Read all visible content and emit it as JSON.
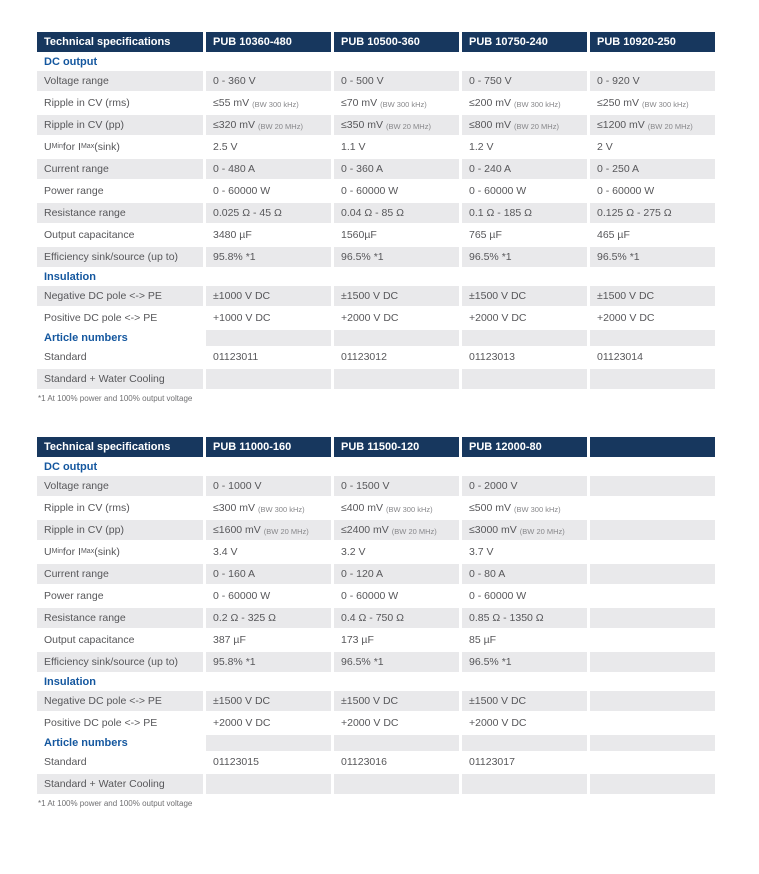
{
  "colors": {
    "header_bg": "#17375e",
    "section_text": "#14579f",
    "row_shade": "#e9e9eb",
    "body_text": "#57575a"
  },
  "tables": [
    {
      "header": [
        "Technical specifications",
        "PUB 10360-480",
        "PUB 10500-360",
        "PUB 10750-240",
        "PUB 10920-250"
      ],
      "rows": [
        {
          "type": "section",
          "label": "DC output"
        },
        {
          "type": "data",
          "label": "Voltage range",
          "values": [
            "0 - 360 V",
            "0 - 500 V",
            "0 - 750 V",
            "0 - 920 V"
          ]
        },
        {
          "type": "data",
          "label": "Ripple in CV (rms)",
          "values": [
            {
              "v": "≤55 mV",
              "n": "(BW 300 kHz)"
            },
            {
              "v": "≤70 mV",
              "n": "(BW 300 kHz)"
            },
            {
              "v": "≤200 mV",
              "n": "(BW 300 kHz)"
            },
            {
              "v": "≤250 mV",
              "n": "(BW 300 kHz)"
            }
          ]
        },
        {
          "type": "data",
          "label": "Ripple in CV (pp)",
          "values": [
            {
              "v": "≤320 mV",
              "n": "(BW 20 MHz)"
            },
            {
              "v": "≤350 mV",
              "n": "(BW 20 MHz)"
            },
            {
              "v": "≤800 mV",
              "n": "(BW 20 MHz)"
            },
            {
              "v": "≤1200 mV",
              "n": "(BW 20 MHz)"
            }
          ]
        },
        {
          "type": "data",
          "label": "U[Min] for I[Max] (sink)",
          "values": [
            "2.5 V",
            "1.1 V",
            "1.2 V",
            "2 V"
          ]
        },
        {
          "type": "data",
          "label": "Current range",
          "values": [
            "0 - 480 A",
            "0 - 360 A",
            "0 - 240 A",
            "0 - 250 A"
          ]
        },
        {
          "type": "data",
          "label": "Power range",
          "values": [
            "0 - 60000 W",
            "0 - 60000 W",
            "0 - 60000 W",
            "0 - 60000 W"
          ]
        },
        {
          "type": "data",
          "label": "Resistance range",
          "values": [
            "0.025 Ω - 45 Ω",
            "0.04 Ω - 85 Ω",
            "0.1 Ω - 185 Ω",
            "0.125 Ω - 275 Ω"
          ]
        },
        {
          "type": "data",
          "label": "Output capacitance",
          "values": [
            "3480 µF",
            "1560µF",
            "765 µF",
            "465 µF"
          ]
        },
        {
          "type": "data",
          "label": "Efficiency sink/source (up to)",
          "values": [
            "95.8% *1",
            "96.5% *1",
            "96.5% *1",
            "96.5% *1"
          ]
        },
        {
          "type": "section",
          "label": "Insulation"
        },
        {
          "type": "data",
          "label": "Negative DC pole <-> PE",
          "values": [
            "±1000 V DC",
            "±1500 V DC",
            "±1500 V DC",
            "±1500 V DC"
          ]
        },
        {
          "type": "data",
          "label": "Positive DC pole <-> PE",
          "values": [
            "+1000 V DC",
            "+2000 V DC",
            "+2000 V DC",
            "+2000 V DC"
          ]
        },
        {
          "type": "section",
          "label": "Article numbers"
        },
        {
          "type": "data",
          "label": "Standard",
          "values": [
            "01123011",
            "01123012",
            "01123013",
            "01123014"
          ]
        },
        {
          "type": "data",
          "label": "Standard + Water Cooling",
          "values": [
            "",
            "",
            "",
            ""
          ]
        }
      ],
      "footnote": "*1 At 100% power and 100% output voltage"
    },
    {
      "header": [
        "Technical specifications",
        "PUB 11000-160",
        "PUB 11500-120",
        "PUB 12000-80",
        ""
      ],
      "rows": [
        {
          "type": "section",
          "label": "DC output"
        },
        {
          "type": "data",
          "label": "Voltage range",
          "values": [
            "0 - 1000 V",
            "0 - 1500 V",
            "0 - 2000 V",
            ""
          ]
        },
        {
          "type": "data",
          "label": "Ripple in CV (rms)",
          "values": [
            {
              "v": "≤300 mV",
              "n": "(BW 300 kHz)"
            },
            {
              "v": "≤400 mV",
              "n": "(BW 300 kHz)"
            },
            {
              "v": "≤500 mV",
              "n": "(BW 300 kHz)"
            },
            ""
          ]
        },
        {
          "type": "data",
          "label": "Ripple in CV (pp)",
          "values": [
            {
              "v": "≤1600 mV",
              "n": "(BW 20 MHz)"
            },
            {
              "v": "≤2400 mV",
              "n": "(BW 20 MHz)"
            },
            {
              "v": "≤3000 mV",
              "n": "(BW 20 MHz)"
            },
            ""
          ]
        },
        {
          "type": "data",
          "label": "U[Min] for I[Max] (sink)",
          "values": [
            "3.4 V",
            "3.2 V",
            "3.7 V",
            ""
          ]
        },
        {
          "type": "data",
          "label": "Current range",
          "values": [
            "0 - 160 A",
            "0 - 120 A",
            "0 - 80 A",
            ""
          ]
        },
        {
          "type": "data",
          "label": "Power range",
          "values": [
            "0 - 60000 W",
            "0 - 60000 W",
            "0 - 60000 W",
            ""
          ]
        },
        {
          "type": "data",
          "label": "Resistance range",
          "values": [
            "0.2 Ω - 325 Ω",
            "0.4 Ω - 750 Ω",
            "0.85 Ω - 1350 Ω",
            ""
          ]
        },
        {
          "type": "data",
          "label": "Output capacitance",
          "values": [
            "387 µF",
            "173 µF",
            "85 µF",
            ""
          ]
        },
        {
          "type": "data",
          "label": "Efficiency sink/source (up to)",
          "values": [
            "95.8% *1",
            "96.5% *1",
            "96.5% *1",
            ""
          ]
        },
        {
          "type": "section",
          "label": "Insulation"
        },
        {
          "type": "data",
          "label": "Negative DC pole <-> PE",
          "values": [
            "±1500 V DC",
            "±1500 V DC",
            "±1500 V DC",
            ""
          ]
        },
        {
          "type": "data",
          "label": "Positive DC pole <-> PE",
          "values": [
            "+2000 V DC",
            "+2000 V DC",
            "+2000 V DC",
            ""
          ]
        },
        {
          "type": "section",
          "label": "Article numbers"
        },
        {
          "type": "data",
          "label": "Standard",
          "values": [
            "01123015",
            "01123016",
            "01123017",
            ""
          ]
        },
        {
          "type": "data",
          "label": "Standard + Water Cooling",
          "values": [
            "",
            "",
            "",
            ""
          ]
        }
      ],
      "footnote": "*1 At 100% power and 100% output voltage"
    }
  ]
}
